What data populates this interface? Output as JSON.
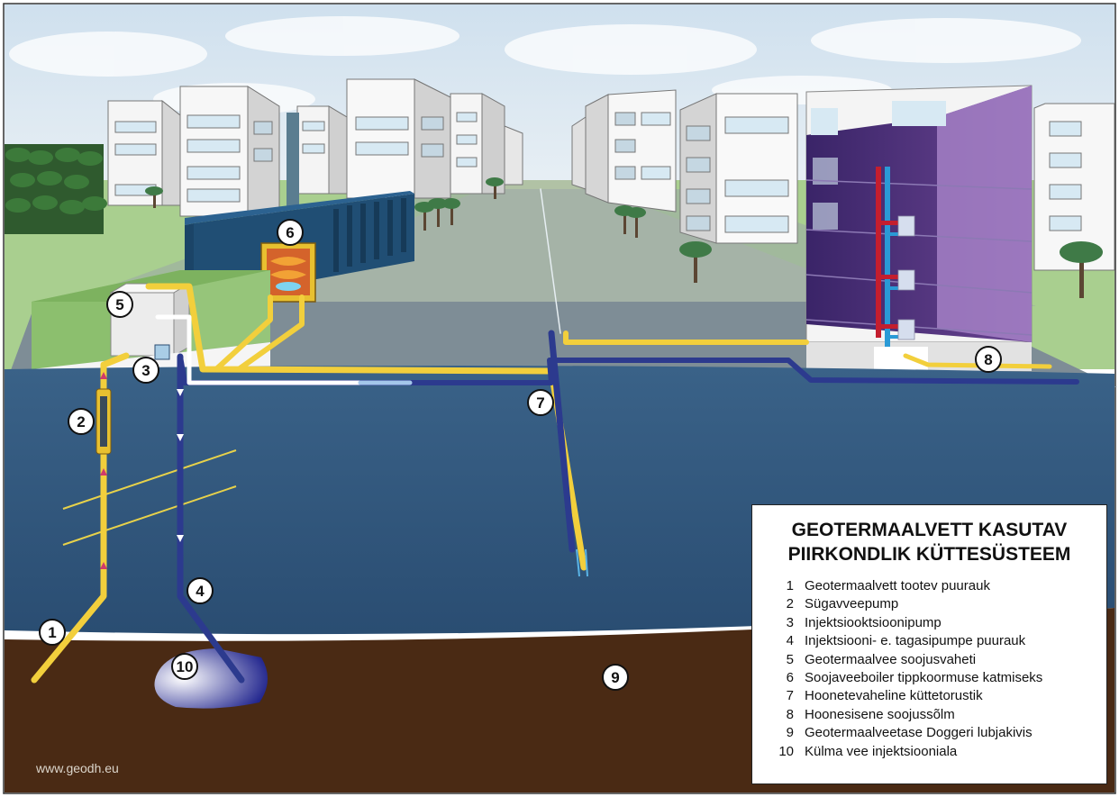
{
  "title": {
    "line1": "GEOTERMAALVETT KASUTAV",
    "line2": "PIIRKONDLIK KÜTTESÜSTEEM"
  },
  "legend": [
    {
      "num": "1",
      "label": "Geotermaalvett tootev puurauk"
    },
    {
      "num": "2",
      "label": "Sügavveepump"
    },
    {
      "num": "3",
      "label": "Injektsiooktsioonipump"
    },
    {
      "num": "4",
      "label": "Injektsiooni- e. tagasipumpe puurauk"
    },
    {
      "num": "5",
      "label": "Geotermaalvee soojusvaheti"
    },
    {
      "num": "6",
      "label": "Soojaveeboiler tippkoormuse katmiseks"
    },
    {
      "num": "7",
      "label": "Hoonetevaheline küttetorustik"
    },
    {
      "num": "8",
      "label": "Hoonesisene soojussõlm"
    },
    {
      "num": "9",
      "label": "Geotermaalveetase Doggeri lubjakivis"
    },
    {
      "num": "10",
      "label": "Külma vee injektsiooniala"
    }
  ],
  "markers": [
    "1",
    "2",
    "3",
    "4",
    "5",
    "6",
    "7",
    "8",
    "9",
    "10"
  ],
  "website": "www.geodh.eu",
  "colors": {
    "sky": "#dfeaf3",
    "grass": "#a9cf8f",
    "groundwater": "#33597e",
    "bedrock": "#4a2a14",
    "hot_pipe": "#f2cf3c",
    "cold_pipe": "#2c3a8e",
    "heat_plant": "#204e74",
    "apartment_purple": "#3b2468"
  }
}
